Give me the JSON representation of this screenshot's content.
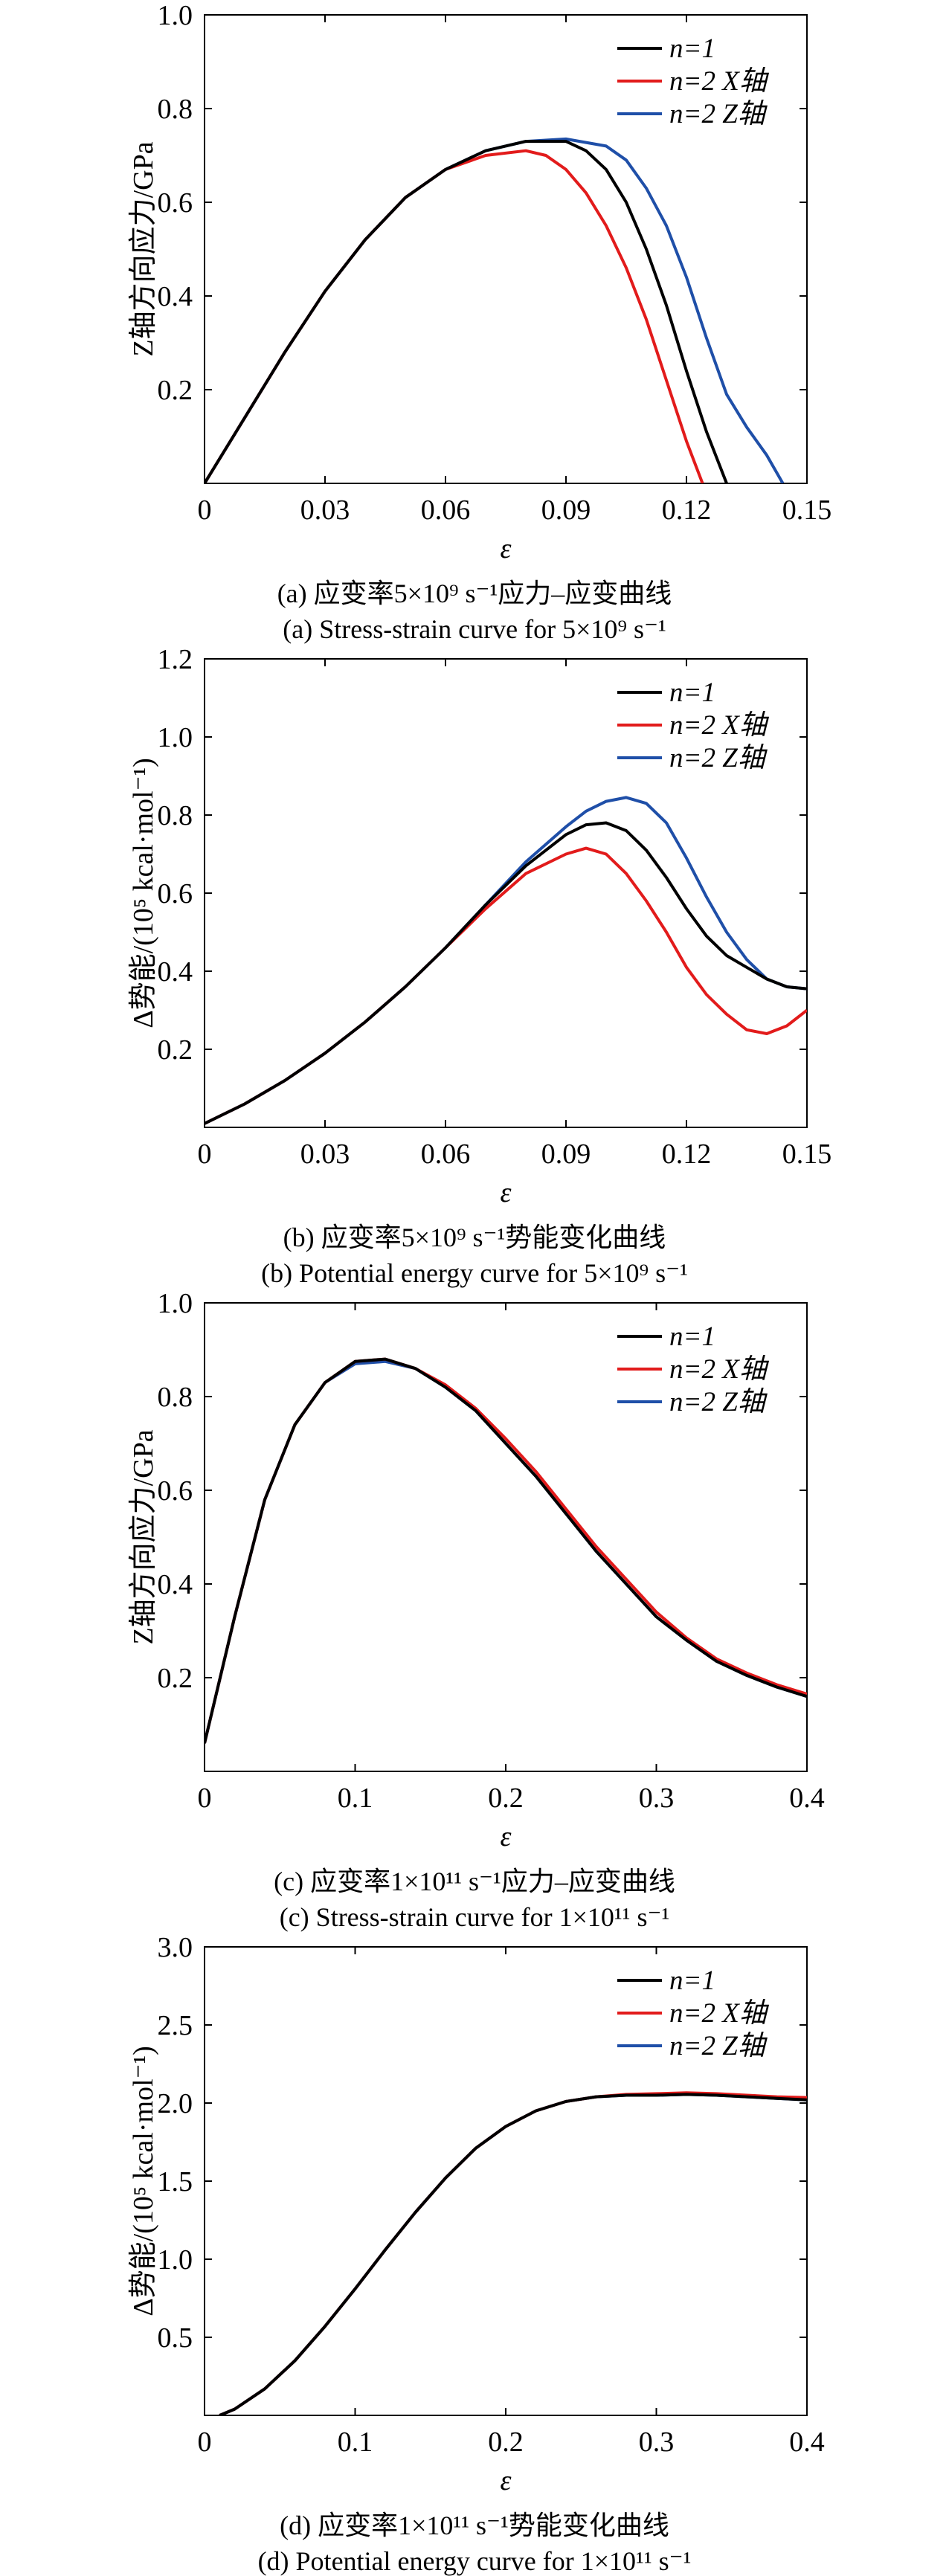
{
  "legend": [
    "n=1",
    "n=2 X轴",
    "n=2 Z轴"
  ],
  "colors": {
    "n1": "#000000",
    "nx": "#e21b1b",
    "nz": "#1f4fa8"
  },
  "chart_data": [
    {
      "type": "line",
      "caption_cn": "(a) 应变率5×10⁹ s⁻¹应力–应变曲线",
      "caption_en": "(a) Stress-strain curve for 5×10⁹ s⁻¹",
      "xlabel": "ε",
      "ylabel": "Z轴方向应力/GPa",
      "xlim": [
        0,
        0.15
      ],
      "ylim": [
        0,
        1.0
      ],
      "xticks": [
        0,
        0.03,
        0.06,
        0.09,
        0.12,
        0.15
      ],
      "xtick_labels": [
        "0",
        "0.03",
        "0.06",
        "0.09",
        "0.12",
        "0.15"
      ],
      "yticks": [
        0.2,
        0.4,
        0.6,
        0.8,
        1.0
      ],
      "ytick_labels": [
        "0.2",
        "0.4",
        "0.6",
        "0.8",
        "1.0"
      ],
      "legend_position": "top-right",
      "series": [
        {
          "name": "n=1",
          "x": [
            0,
            0.01,
            0.02,
            0.03,
            0.04,
            0.05,
            0.06,
            0.07,
            0.08,
            0.09,
            0.095,
            0.1,
            0.105,
            0.11,
            0.115,
            0.12,
            0.125,
            0.13
          ],
          "y": [
            0,
            0.14,
            0.28,
            0.41,
            0.52,
            0.61,
            0.67,
            0.71,
            0.73,
            0.73,
            0.71,
            0.67,
            0.6,
            0.5,
            0.38,
            0.24,
            0.11,
            0
          ]
        },
        {
          "name": "n=2 X轴",
          "x": [
            0,
            0.01,
            0.02,
            0.03,
            0.04,
            0.05,
            0.06,
            0.07,
            0.08,
            0.085,
            0.09,
            0.095,
            0.1,
            0.105,
            0.11,
            0.115,
            0.12,
            0.124
          ],
          "y": [
            0,
            0.14,
            0.28,
            0.41,
            0.52,
            0.61,
            0.67,
            0.7,
            0.71,
            0.7,
            0.67,
            0.62,
            0.55,
            0.46,
            0.35,
            0.22,
            0.09,
            0
          ]
        },
        {
          "name": "n=2 Z轴",
          "x": [
            0,
            0.01,
            0.02,
            0.03,
            0.04,
            0.05,
            0.06,
            0.07,
            0.08,
            0.09,
            0.1,
            0.105,
            0.11,
            0.115,
            0.12,
            0.125,
            0.13,
            0.135,
            0.14,
            0.144
          ],
          "y": [
            0,
            0.14,
            0.28,
            0.41,
            0.52,
            0.61,
            0.67,
            0.71,
            0.73,
            0.735,
            0.72,
            0.69,
            0.63,
            0.55,
            0.44,
            0.31,
            0.19,
            0.12,
            0.06,
            0
          ]
        }
      ]
    },
    {
      "type": "line",
      "caption_cn": "(b) 应变率5×10⁹ s⁻¹势能变化曲线",
      "caption_en": "(b) Potential energy curve for 5×10⁹ s⁻¹",
      "xlabel": "ε",
      "ylabel": "Δ势能/(10⁵ kcal·mol⁻¹)",
      "xlim": [
        0,
        0.15
      ],
      "ylim": [
        0,
        1.2
      ],
      "xticks": [
        0,
        0.03,
        0.06,
        0.09,
        0.12,
        0.15
      ],
      "xtick_labels": [
        "0",
        "0.03",
        "0.06",
        "0.09",
        "0.12",
        "0.15"
      ],
      "yticks": [
        0.2,
        0.4,
        0.6,
        0.8,
        1.0,
        1.2
      ],
      "ytick_labels": [
        "0.2",
        "0.4",
        "0.6",
        "0.8",
        "1.0",
        "1.2"
      ],
      "legend_position": "top-right",
      "series": [
        {
          "name": "n=1",
          "x": [
            0,
            0.01,
            0.02,
            0.03,
            0.04,
            0.05,
            0.06,
            0.07,
            0.08,
            0.09,
            0.095,
            0.1,
            0.105,
            0.11,
            0.115,
            0.12,
            0.125,
            0.13,
            0.135,
            0.14,
            0.145,
            0.15
          ],
          "y": [
            0.01,
            0.06,
            0.12,
            0.19,
            0.27,
            0.36,
            0.46,
            0.57,
            0.67,
            0.75,
            0.775,
            0.78,
            0.76,
            0.71,
            0.64,
            0.56,
            0.49,
            0.44,
            0.41,
            0.38,
            0.36,
            0.355
          ]
        },
        {
          "name": "n=2 X轴",
          "x": [
            0,
            0.01,
            0.02,
            0.03,
            0.04,
            0.05,
            0.06,
            0.07,
            0.08,
            0.09,
            0.095,
            0.1,
            0.105,
            0.11,
            0.115,
            0.12,
            0.125,
            0.13,
            0.135,
            0.14,
            0.145,
            0.15
          ],
          "y": [
            0.01,
            0.06,
            0.12,
            0.19,
            0.27,
            0.36,
            0.46,
            0.56,
            0.65,
            0.7,
            0.715,
            0.7,
            0.65,
            0.58,
            0.5,
            0.41,
            0.34,
            0.29,
            0.25,
            0.24,
            0.26,
            0.3
          ]
        },
        {
          "name": "n=2 Z轴",
          "x": [
            0,
            0.01,
            0.02,
            0.03,
            0.04,
            0.05,
            0.06,
            0.07,
            0.08,
            0.09,
            0.095,
            0.1,
            0.105,
            0.11,
            0.115,
            0.12,
            0.125,
            0.13,
            0.135,
            0.14,
            0.145,
            0.15
          ],
          "y": [
            0.01,
            0.06,
            0.12,
            0.19,
            0.27,
            0.36,
            0.46,
            0.57,
            0.68,
            0.77,
            0.81,
            0.835,
            0.845,
            0.83,
            0.78,
            0.69,
            0.59,
            0.5,
            0.43,
            0.38,
            0.36,
            0.355
          ]
        }
      ]
    },
    {
      "type": "line",
      "caption_cn": "(c) 应变率1×10¹¹ s⁻¹应力–应变曲线",
      "caption_en": "(c) Stress-strain curve for 1×10¹¹ s⁻¹",
      "xlabel": "ε",
      "ylabel": "Z轴方向应力/GPa",
      "xlim": [
        0,
        0.4
      ],
      "ylim": [
        0,
        1.0
      ],
      "xticks": [
        0,
        0.1,
        0.2,
        0.3,
        0.4
      ],
      "xtick_labels": [
        "0",
        "0.1",
        "0.2",
        "0.3",
        "0.4"
      ],
      "yticks": [
        0.2,
        0.4,
        0.6,
        0.8,
        1.0
      ],
      "ytick_labels": [
        "0.2",
        "0.4",
        "0.6",
        "0.8",
        "1.0"
      ],
      "legend_position": "top-right",
      "series": [
        {
          "name": "n=1",
          "x": [
            0.0,
            0.02,
            0.04,
            0.06,
            0.08,
            0.1,
            0.12,
            0.14,
            0.16,
            0.18,
            0.2,
            0.22,
            0.24,
            0.26,
            0.28,
            0.3,
            0.32,
            0.34,
            0.36,
            0.38,
            0.4
          ],
          "y": [
            0.06,
            0.33,
            0.58,
            0.74,
            0.83,
            0.875,
            0.88,
            0.86,
            0.82,
            0.77,
            0.7,
            0.63,
            0.55,
            0.47,
            0.4,
            0.33,
            0.28,
            0.235,
            0.205,
            0.18,
            0.16
          ]
        },
        {
          "name": "n=2 X轴",
          "x": [
            0.0,
            0.02,
            0.04,
            0.06,
            0.08,
            0.1,
            0.12,
            0.14,
            0.16,
            0.18,
            0.2,
            0.22,
            0.24,
            0.26,
            0.28,
            0.3,
            0.32,
            0.34,
            0.36,
            0.38,
            0.4
          ],
          "y": [
            0.06,
            0.33,
            0.58,
            0.74,
            0.83,
            0.875,
            0.88,
            0.86,
            0.825,
            0.775,
            0.71,
            0.64,
            0.56,
            0.48,
            0.41,
            0.34,
            0.285,
            0.24,
            0.21,
            0.185,
            0.165
          ]
        },
        {
          "name": "n=2 Z轴",
          "x": [
            0.0,
            0.02,
            0.04,
            0.06,
            0.08,
            0.1,
            0.12,
            0.14,
            0.16,
            0.18,
            0.2,
            0.22,
            0.24,
            0.26,
            0.28,
            0.3,
            0.32,
            0.34,
            0.36,
            0.38,
            0.4
          ],
          "y": [
            0.06,
            0.33,
            0.58,
            0.74,
            0.83,
            0.87,
            0.875,
            0.86,
            0.82,
            0.77,
            0.7,
            0.63,
            0.55,
            0.47,
            0.4,
            0.33,
            0.28,
            0.235,
            0.205,
            0.18,
            0.16
          ]
        }
      ]
    },
    {
      "type": "line",
      "caption_cn": "(d) 应变率1×10¹¹ s⁻¹势能变化曲线",
      "caption_en": "(d) Potential energy curve for 1×10¹¹ s⁻¹",
      "xlabel": "ε",
      "ylabel": "Δ势能/(10⁵ kcal·mol⁻¹)",
      "xlim": [
        0,
        0.4
      ],
      "ylim": [
        0,
        3.0
      ],
      "xticks": [
        0,
        0.1,
        0.2,
        0.3,
        0.4
      ],
      "xtick_labels": [
        "0",
        "0.1",
        "0.2",
        "0.3",
        "0.4"
      ],
      "yticks": [
        0.5,
        1.0,
        1.5,
        2.0,
        2.5,
        3.0
      ],
      "ytick_labels": [
        "0.5",
        "1.0",
        "1.5",
        "2.0",
        "2.5",
        "3.0"
      ],
      "legend_position": "top-right",
      "series": [
        {
          "name": "n=1",
          "x": [
            0.01,
            0.02,
            0.04,
            0.06,
            0.08,
            0.1,
            0.12,
            0.14,
            0.16,
            0.18,
            0.2,
            0.22,
            0.24,
            0.26,
            0.28,
            0.3,
            0.32,
            0.34,
            0.36,
            0.38,
            0.4
          ],
          "y": [
            0,
            0.04,
            0.17,
            0.35,
            0.57,
            0.81,
            1.06,
            1.3,
            1.52,
            1.71,
            1.85,
            1.95,
            2.01,
            2.04,
            2.05,
            2.05,
            2.055,
            2.05,
            2.04,
            2.03,
            2.02
          ]
        },
        {
          "name": "n=2 X轴",
          "x": [
            0.01,
            0.02,
            0.04,
            0.06,
            0.08,
            0.1,
            0.12,
            0.14,
            0.16,
            0.18,
            0.2,
            0.22,
            0.24,
            0.26,
            0.28,
            0.3,
            0.32,
            0.34,
            0.36,
            0.38,
            0.4
          ],
          "y": [
            0,
            0.04,
            0.17,
            0.35,
            0.57,
            0.81,
            1.06,
            1.3,
            1.52,
            1.71,
            1.85,
            1.95,
            2.01,
            2.04,
            2.055,
            2.06,
            2.065,
            2.06,
            2.05,
            2.04,
            2.035
          ]
        },
        {
          "name": "n=2 Z轴",
          "x": [
            0.01,
            0.02,
            0.04,
            0.06,
            0.08,
            0.1,
            0.12,
            0.14,
            0.16,
            0.18,
            0.2,
            0.22,
            0.24,
            0.26,
            0.28,
            0.3,
            0.32,
            0.34,
            0.36,
            0.38,
            0.4
          ],
          "y": [
            0,
            0.04,
            0.17,
            0.35,
            0.57,
            0.81,
            1.06,
            1.3,
            1.52,
            1.71,
            1.85,
            1.95,
            2.01,
            2.04,
            2.05,
            2.05,
            2.055,
            2.05,
            2.04,
            2.03,
            2.02
          ]
        }
      ]
    }
  ]
}
